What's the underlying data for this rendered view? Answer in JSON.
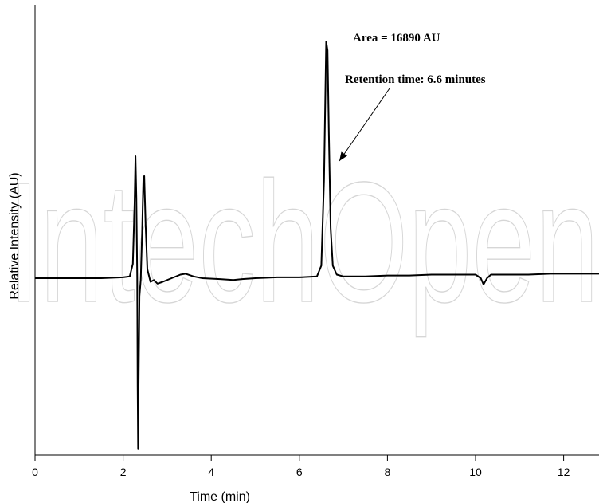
{
  "chart_data": {
    "type": "line",
    "xlabel": "Time (min)",
    "ylabel": "Relative Intensity (AU)",
    "xlim": [
      0,
      12.9
    ],
    "ylim": [
      -1.05,
      1.5
    ],
    "x_ticks": [
      0,
      2,
      4,
      6,
      8,
      10,
      12
    ],
    "y_ticks": [],
    "grid": false,
    "legend": "none",
    "watermark": "IntechOpen",
    "annotations": {
      "area": "Area = 16890 AU",
      "retention": "Retention time: 6.6 minutes"
    },
    "series": [
      {
        "color": "#000000",
        "points": [
          [
            0.0,
            0.0
          ],
          [
            0.5,
            0.0
          ],
          [
            1.0,
            0.0
          ],
          [
            1.5,
            0.0
          ],
          [
            2.0,
            0.005
          ],
          [
            2.15,
            0.01
          ],
          [
            2.22,
            0.08
          ],
          [
            2.26,
            0.42
          ],
          [
            2.28,
            0.68
          ],
          [
            2.3,
            0.45
          ],
          [
            2.32,
            0.0
          ],
          [
            2.33,
            -0.6
          ],
          [
            2.34,
            -0.95
          ],
          [
            2.35,
            -0.6
          ],
          [
            2.37,
            -0.1
          ],
          [
            2.4,
            -0.01
          ],
          [
            2.43,
            0.25
          ],
          [
            2.46,
            0.55
          ],
          [
            2.48,
            0.57
          ],
          [
            2.51,
            0.3
          ],
          [
            2.55,
            0.05
          ],
          [
            2.62,
            -0.02
          ],
          [
            2.7,
            -0.01
          ],
          [
            2.78,
            -0.03
          ],
          [
            2.9,
            -0.02
          ],
          [
            3.1,
            0.0
          ],
          [
            3.3,
            0.02
          ],
          [
            3.42,
            0.025
          ],
          [
            3.6,
            0.01
          ],
          [
            3.8,
            0.0
          ],
          [
            4.2,
            -0.005
          ],
          [
            4.5,
            -0.01
          ],
          [
            4.7,
            -0.005
          ],
          [
            5.0,
            0.0
          ],
          [
            5.5,
            0.005
          ],
          [
            6.0,
            0.005
          ],
          [
            6.4,
            0.01
          ],
          [
            6.5,
            0.07
          ],
          [
            6.56,
            0.55
          ],
          [
            6.61,
            1.32
          ],
          [
            6.64,
            1.27
          ],
          [
            6.67,
            0.8
          ],
          [
            6.71,
            0.28
          ],
          [
            6.76,
            0.07
          ],
          [
            6.85,
            0.02
          ],
          [
            7.0,
            0.01
          ],
          [
            7.5,
            0.01
          ],
          [
            8.0,
            0.015
          ],
          [
            8.5,
            0.015
          ],
          [
            9.0,
            0.02
          ],
          [
            9.5,
            0.02
          ],
          [
            10.0,
            0.02
          ],
          [
            10.12,
            0.0
          ],
          [
            10.18,
            -0.035
          ],
          [
            10.26,
            0.0
          ],
          [
            10.35,
            0.02
          ],
          [
            10.8,
            0.02
          ],
          [
            11.2,
            0.02
          ],
          [
            11.7,
            0.025
          ],
          [
            12.2,
            0.025
          ],
          [
            12.9,
            0.025
          ]
        ]
      }
    ]
  }
}
